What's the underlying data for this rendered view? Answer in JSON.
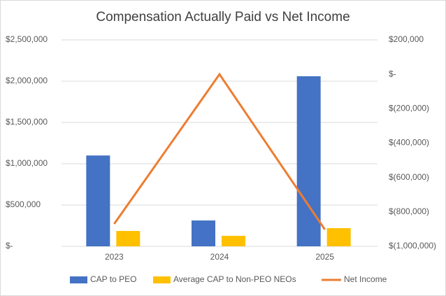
{
  "chart_data": {
    "type": "bar-line",
    "title": "Compensation Actually Paid vs Net Income",
    "categories": [
      "2023",
      "2024",
      "2025"
    ],
    "series": [
      {
        "name": "CAP to PEO",
        "color": "#4472c4",
        "type": "bar",
        "values": [
          1100000,
          313000,
          2060000
        ]
      },
      {
        "name": "Average CAP to Non-PEO NEOs",
        "color": "#ffc000",
        "type": "bar",
        "values": [
          186000,
          127000,
          220000
        ]
      },
      {
        "name": "Net Income",
        "color": "#ed7d31",
        "type": "line",
        "axis": "y2",
        "values": [
          -870000,
          0,
          -902000
        ]
      }
    ],
    "ylim": [
      0,
      2500000
    ],
    "yticks": [
      {
        "value": 0,
        "label": "$-"
      },
      {
        "value": 500000,
        "label": "$500,000"
      },
      {
        "value": 1000000,
        "label": "$1,000,000"
      },
      {
        "value": 1500000,
        "label": "$1,500,000"
      },
      {
        "value": 2000000,
        "label": "$2,000,000"
      },
      {
        "value": 2500000,
        "label": "$2,500,000"
      }
    ],
    "y2lim": [
      -1000000,
      200000
    ],
    "y2ticks": [
      {
        "value": -1000000,
        "label": "$(1,000,000)"
      },
      {
        "value": -800000,
        "label": "$(800,000)"
      },
      {
        "value": -600000,
        "label": "$(600,000)"
      },
      {
        "value": -400000,
        "label": "$(400,000)"
      },
      {
        "value": -200000,
        "label": "$(200,000)"
      },
      {
        "value": 0,
        "label": "$-"
      },
      {
        "value": 200000,
        "label": "$200,000"
      }
    ],
    "grid": true,
    "legend": "bottom"
  }
}
